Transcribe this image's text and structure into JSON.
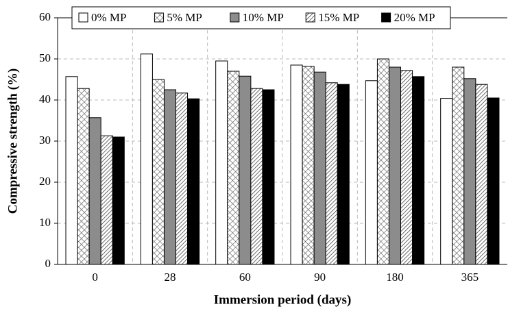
{
  "chart_data": {
    "type": "bar",
    "x_label": "Immersion period (days)",
    "y_label": "Compressive strength (%)",
    "categories": [
      "0",
      "28",
      "60",
      "90",
      "180",
      "365"
    ],
    "series": [
      {
        "name": "0% MP",
        "color": "#ffffff",
        "pattern": "solid",
        "values": [
          45.7,
          51.2,
          49.5,
          48.5,
          44.7,
          40.4
        ]
      },
      {
        "name": "5% MP",
        "color": "#ffffff",
        "pattern": "crosshatch",
        "values": [
          42.8,
          45.0,
          47.0,
          48.2,
          50.0,
          48.0
        ]
      },
      {
        "name": "10% MP",
        "color": "#8c8c8c",
        "pattern": "solid",
        "values": [
          35.7,
          42.5,
          45.8,
          46.8,
          48.0,
          45.2
        ]
      },
      {
        "name": "15% MP",
        "color": "#ffffff",
        "pattern": "diagonal",
        "values": [
          31.3,
          41.7,
          42.8,
          44.2,
          47.2,
          43.8
        ]
      },
      {
        "name": "20% MP",
        "color": "#000000",
        "pattern": "solid",
        "values": [
          31.0,
          40.3,
          42.5,
          43.8,
          45.7,
          40.5
        ]
      }
    ],
    "ylim": [
      0,
      60
    ],
    "yticks": [
      0,
      10,
      20,
      30,
      40,
      50,
      60
    ],
    "grid": true,
    "legend": "top"
  }
}
